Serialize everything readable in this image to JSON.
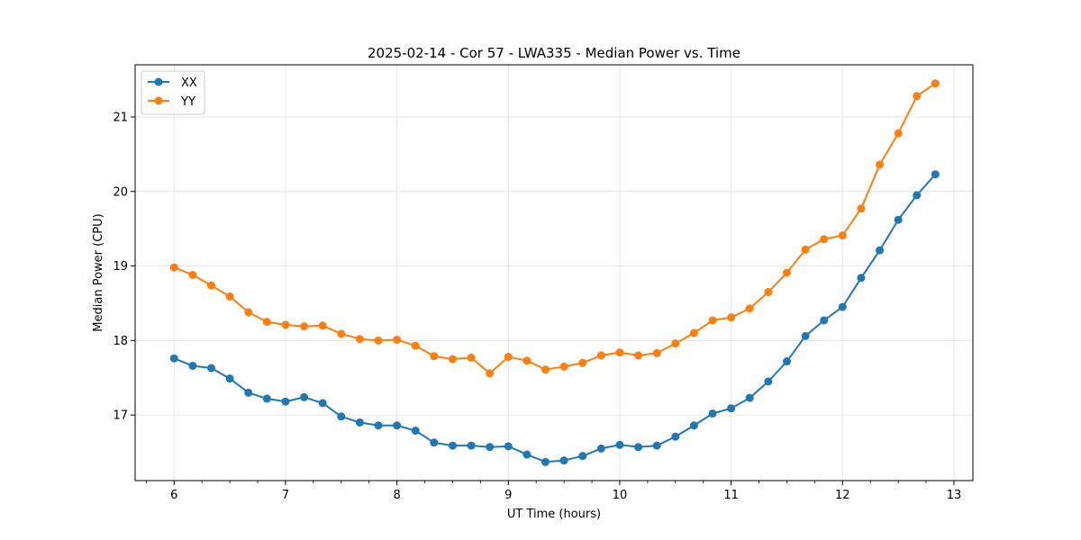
{
  "chart_data": {
    "type": "line",
    "title": "2025-02-14 - Cor 57 - LWA335 - Median Power vs. Time",
    "xlabel": "UT Time (hours)",
    "ylabel": "Median Power (CPU)",
    "xlim": [
      5.65,
      13.17
    ],
    "ylim": [
      16.12,
      21.7
    ],
    "xticks": [
      6,
      7,
      8,
      9,
      10,
      11,
      12,
      13
    ],
    "yticks": [
      17,
      18,
      19,
      20,
      21
    ],
    "xminor_step": 0.25,
    "grid": true,
    "legend_position": "upper-left",
    "x": [
      6.0,
      6.1667,
      6.3333,
      6.5,
      6.6667,
      6.8333,
      7.0,
      7.1667,
      7.3333,
      7.5,
      7.6667,
      7.8333,
      8.0,
      8.1667,
      8.3333,
      8.5,
      8.6667,
      8.8333,
      9.0,
      9.1667,
      9.3333,
      9.5,
      9.6667,
      9.8333,
      10.0,
      10.1667,
      10.3333,
      10.5,
      10.6667,
      10.8333,
      11.0,
      11.1667,
      11.3333,
      11.5,
      11.6667,
      11.8333,
      12.0,
      12.1667,
      12.3333,
      12.5,
      12.6667,
      12.8333
    ],
    "series": [
      {
        "name": "XX",
        "color": "#1f77b4",
        "values": [
          17.76,
          17.66,
          17.63,
          17.49,
          17.3,
          17.22,
          17.18,
          17.24,
          17.16,
          16.98,
          16.9,
          16.86,
          16.86,
          16.79,
          16.63,
          16.59,
          16.59,
          16.57,
          16.58,
          16.47,
          16.37,
          16.39,
          16.45,
          16.55,
          16.6,
          16.57,
          16.59,
          16.71,
          16.86,
          17.02,
          17.09,
          17.23,
          17.45,
          17.72,
          18.06,
          18.27,
          18.45,
          18.84,
          19.21,
          19.62,
          19.95,
          20.23
        ]
      },
      {
        "name": "YY",
        "color": "#ff7f0e",
        "values": [
          18.98,
          18.88,
          18.74,
          18.59,
          18.38,
          18.25,
          18.21,
          18.19,
          18.2,
          18.09,
          18.02,
          18.0,
          18.01,
          17.93,
          17.79,
          17.75,
          17.77,
          17.56,
          17.78,
          17.73,
          17.61,
          17.65,
          17.7,
          17.8,
          17.84,
          17.8,
          17.83,
          17.96,
          18.1,
          18.27,
          18.31,
          18.43,
          18.65,
          18.91,
          19.22,
          19.36,
          19.41,
          19.77,
          20.36,
          20.78,
          21.28,
          21.45
        ]
      }
    ]
  }
}
